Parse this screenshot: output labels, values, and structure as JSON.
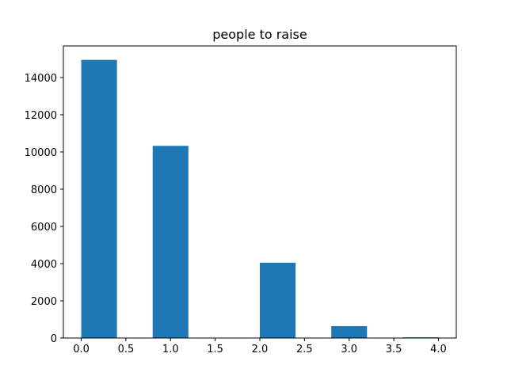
{
  "chart_data": {
    "type": "bar",
    "title": "people to raise",
    "xlabel": "",
    "ylabel": "",
    "bar_color": "#1f77b4",
    "bins": [
      {
        "x0": 0.0,
        "x1": 0.4,
        "value": 14950
      },
      {
        "x0": 0.4,
        "x1": 0.8,
        "value": 0
      },
      {
        "x0": 0.8,
        "x1": 1.2,
        "value": 10330
      },
      {
        "x0": 1.2,
        "x1": 1.6,
        "value": 0
      },
      {
        "x0": 1.6,
        "x1": 2.0,
        "value": 0
      },
      {
        "x0": 2.0,
        "x1": 2.4,
        "value": 4050
      },
      {
        "x0": 2.4,
        "x1": 2.8,
        "value": 0
      },
      {
        "x0": 2.8,
        "x1": 3.2,
        "value": 640
      },
      {
        "x0": 3.2,
        "x1": 3.6,
        "value": 0
      },
      {
        "x0": 3.6,
        "x1": 4.0,
        "value": 40
      }
    ],
    "xlim": [
      -0.2,
      4.2
    ],
    "ylim": [
      0,
      15700
    ],
    "xticks": [
      0.0,
      0.5,
      1.0,
      1.5,
      2.0,
      2.5,
      3.0,
      3.5,
      4.0
    ],
    "xtick_labels": [
      "0.0",
      "0.5",
      "1.0",
      "1.5",
      "2.0",
      "2.5",
      "3.0",
      "3.5",
      "4.0"
    ],
    "yticks": [
      0,
      2000,
      4000,
      6000,
      8000,
      10000,
      12000,
      14000
    ],
    "ytick_labels": [
      "0",
      "2000",
      "4000",
      "6000",
      "8000",
      "10000",
      "12000",
      "14000"
    ],
    "grid": false,
    "legend": "none"
  }
}
